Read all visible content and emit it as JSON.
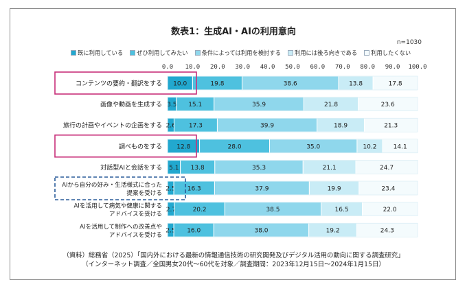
{
  "chart_data": {
    "type": "bar",
    "stacked": true,
    "orientation": "horizontal",
    "title": "数表1：生成AI・AIの利用意向",
    "note": "n=1030",
    "xlim": [
      0,
      100
    ],
    "xticks": [
      "0.0",
      "10.0",
      "20.0",
      "30.0",
      "40.0",
      "50.0",
      "60.0",
      "70.0",
      "80.0",
      "90.0",
      "100.0"
    ],
    "categories": [
      [
        "コンテンツの要約・翻訳をする"
      ],
      [
        "画像や動画を生成する"
      ],
      [
        "旅行の計画やイベントの企画をする"
      ],
      [
        "調べものをする"
      ],
      [
        "対話型AIと会話をする"
      ],
      [
        "AIから自分の好み・生活様式に合った",
        "提案を受ける"
      ],
      [
        "AIを活用して病気や健康に関する",
        "アドバイスを受ける"
      ],
      [
        "AIを活用して制作への改善点や",
        "アドバイスを受ける"
      ]
    ],
    "series": [
      {
        "name": "既に利用している",
        "color": "#22a8cf",
        "values": [
          10.0,
          3.5,
          2.6,
          12.8,
          5.1,
          2.5,
          2.7,
          2.5
        ]
      },
      {
        "name": "ぜひ利用してみたい",
        "color": "#4ec1df",
        "values": [
          19.8,
          15.1,
          17.3,
          28.0,
          13.8,
          16.3,
          20.2,
          16.0
        ]
      },
      {
        "name": "条件によっては利用を検討する",
        "color": "#8fd7ec",
        "values": [
          38.6,
          35.9,
          39.9,
          35.0,
          35.3,
          37.9,
          38.5,
          38.0
        ]
      },
      {
        "name": "利用には後ろ向きである",
        "color": "#c9ecf6",
        "values": [
          13.8,
          21.8,
          18.9,
          10.2,
          21.1,
          19.9,
          16.5,
          19.2
        ]
      },
      {
        "name": "利用したくない",
        "color": "#f4fbfd",
        "values": [
          17.8,
          23.6,
          21.3,
          14.1,
          24.7,
          23.4,
          22.0,
          24.3
        ]
      }
    ],
    "highlight_solid": [
      0,
      3
    ],
    "highlight_dashed": [
      5
    ]
  },
  "footer": {
    "line1": "（資料）総務省（2025）「国内外における最新の情報通信技術の研究開発及びデジタル活用の動向に関する調査研究」",
    "line2": "（インターネット調査／全国男女20代〜60代を対象／調査期間：2023年12月15日〜2024年1月15日）"
  }
}
